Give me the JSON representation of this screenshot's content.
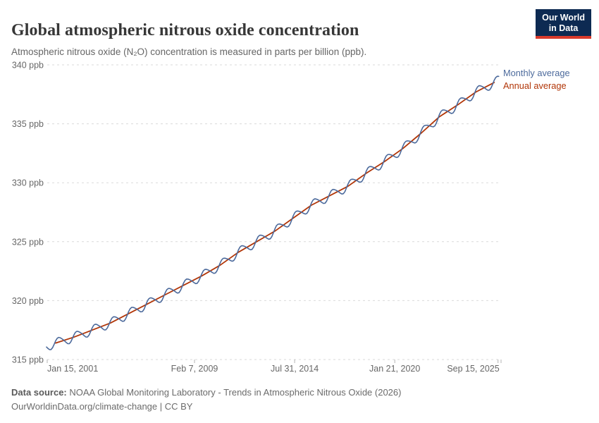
{
  "header": {
    "title": "Global atmospheric nitrous oxide concentration",
    "subtitle": "Atmospheric nitrous oxide (N₂O) concentration is measured in parts per billion (ppb).",
    "logo_line1": "Our World",
    "logo_line2": "in Data",
    "logo_bg_color": "#0d2a52",
    "logo_accent_color": "#d93a2b"
  },
  "chart_data": {
    "type": "line",
    "title": "Global atmospheric nitrous oxide concentration",
    "ylabel": "",
    "xlabel": "",
    "unit": "ppb",
    "ylim": [
      315,
      340
    ],
    "yticks": [
      315,
      320,
      325,
      330,
      335,
      340
    ],
    "ytick_suffix": " ppb",
    "grid": true,
    "gridline_color": "#dadada",
    "axis_text_color": "#676767",
    "legend_position": "right of line ends",
    "xticks": [
      {
        "t": 2001.04,
        "label": "Jan 15, 2001"
      },
      {
        "t": 2009.1,
        "label": "Feb 7, 2009"
      },
      {
        "t": 2014.58,
        "label": "Jul 31, 2014"
      },
      {
        "t": 2020.06,
        "label": "Jan 21, 2020"
      },
      {
        "t": 2025.71,
        "label": "Sep 15, 2025"
      }
    ],
    "series": [
      {
        "name": "Monthly average",
        "color": "#4C6A9C",
        "note": "monthly values = annual trend plus seasonal cycle, Jan 2001 - Oct 2025",
        "model": {
          "start": 2001.0,
          "end": 2025.79,
          "start_value_ppb": 316.3,
          "end_value_ppb": 339.0,
          "seasonal_amplitude_ppb": 0.4,
          "seasonal_phase_rad": -2.8,
          "harmonic2_amplitude_ppb": 0.06
        }
      },
      {
        "name": "Annual average",
        "color": "#B13507",
        "years": [
          2001,
          2002,
          2003,
          2004,
          2005,
          2006,
          2007,
          2008,
          2009,
          2010,
          2011,
          2012,
          2013,
          2014,
          2015,
          2016,
          2017,
          2018,
          2019,
          2020,
          2021,
          2022,
          2023,
          2024,
          2025
        ],
        "values": [
          316.4,
          316.9,
          317.5,
          318.1,
          318.9,
          319.7,
          320.5,
          321.3,
          322.1,
          323.0,
          324.1,
          325.0,
          325.9,
          327.0,
          328.1,
          328.9,
          329.7,
          330.8,
          331.8,
          332.9,
          334.2,
          335.6,
          336.6,
          337.7,
          338.5
        ]
      }
    ]
  },
  "footer": {
    "source_label": "Data source:",
    "source_text": " NOAA Global Monitoring Laboratory - Trends in Atmospheric Nitrous Oxide (2026)",
    "attribution": "OurWorldinData.org/climate-change | CC BY"
  }
}
